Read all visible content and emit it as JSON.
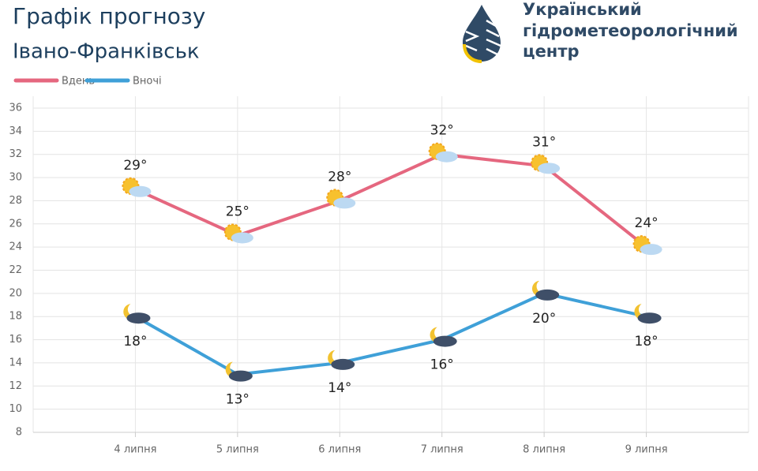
{
  "chart_data": {
    "type": "line",
    "title": "Графік прогнозу",
    "subtitle": "Івано-Франківськ",
    "logo_text": [
      "Український",
      "гідрометеорологічний",
      "центр"
    ],
    "categories": [
      "4 липня",
      "5 липня",
      "6 липня",
      "7 липня",
      "8 липня",
      "9 липня"
    ],
    "series": [
      {
        "name": "Вдень",
        "color": "#e5677f",
        "values": [
          29,
          25,
          28,
          32,
          31,
          24
        ],
        "value_labels": [
          "29°",
          "25°",
          "28°",
          "32°",
          "31°",
          "24°"
        ]
      },
      {
        "name": "Вночі",
        "color": "#3fa0d8",
        "values": [
          18,
          13,
          14,
          16,
          20,
          18
        ],
        "value_labels": [
          "18°",
          "13°",
          "14°",
          "16°",
          "20°",
          "18°"
        ]
      }
    ],
    "ylim": [
      8,
      36
    ],
    "yticks": [
      8,
      10,
      12,
      14,
      16,
      18,
      20,
      22,
      24,
      26,
      28,
      30,
      32,
      34,
      36
    ],
    "grid": true
  }
}
